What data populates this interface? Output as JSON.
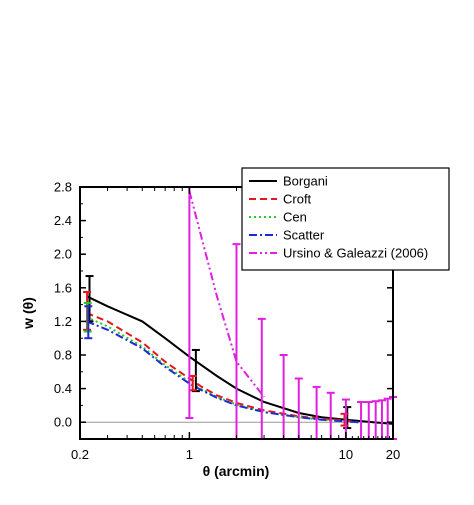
{
  "chart_data": {
    "type": "line",
    "xlabel": "θ (arcmin)",
    "ylabel": "w (θ)",
    "xscale": "log",
    "xlim": [
      0.2,
      20
    ],
    "ylim": [
      -0.2,
      2.8
    ],
    "x_ticks": [
      0.2,
      1,
      10,
      20
    ],
    "x_tick_labels": [
      "0.2",
      "1",
      "10",
      "20"
    ],
    "y_ticks": [
      0.0,
      0.4,
      0.8,
      1.2,
      1.6,
      2.0,
      2.4,
      2.8
    ],
    "y_tick_labels": [
      "0.0",
      "0.4",
      "0.8",
      "1.2",
      "1.6",
      "2.0",
      "2.4",
      "2.8"
    ],
    "legend_position": "top-right",
    "zero_line": true,
    "series": [
      {
        "name": "Borgani",
        "color": "#000000",
        "style": "solid",
        "x": [
          0.22,
          0.3,
          0.5,
          0.7,
          1.0,
          1.5,
          2.0,
          3.0,
          5.0,
          7.0,
          10.0,
          15.0,
          20.0
        ],
        "y": [
          1.5,
          1.38,
          1.2,
          1.0,
          0.78,
          0.55,
          0.4,
          0.24,
          0.11,
          0.06,
          0.03,
          0.0,
          -0.02
        ],
        "error_bars": [
          {
            "x": 0.23,
            "y": 1.47,
            "lo": 1.2,
            "hi": 1.74
          },
          {
            "x": 1.1,
            "y": 0.55,
            "lo": 0.37,
            "hi": 0.86
          },
          {
            "x": 10.2,
            "y": 0.04,
            "lo": -0.07,
            "hi": 0.18
          }
        ]
      },
      {
        "name": "Croft",
        "color": "#e8151c",
        "style": "dashed",
        "x": [
          0.22,
          0.3,
          0.5,
          0.7,
          1.0,
          1.2,
          1.5,
          2.0,
          3.0,
          5.0,
          7.0,
          10.0,
          12.0
        ],
        "y": [
          1.3,
          1.2,
          0.95,
          0.72,
          0.52,
          0.42,
          0.32,
          0.23,
          0.14,
          0.07,
          0.04,
          0.02,
          0.0
        ],
        "error_bars": [
          {
            "x": 0.222,
            "y": 1.35,
            "lo": 1.1,
            "hi": 1.55
          },
          {
            "x": 1.05,
            "y": 0.45,
            "lo": 0.38,
            "hi": 0.55
          },
          {
            "x": 9.8,
            "y": 0.02,
            "lo": -0.04,
            "hi": 0.1
          }
        ]
      },
      {
        "name": "Cen",
        "color": "#22cc22",
        "style": "dotted",
        "x": [
          0.22,
          0.3,
          0.5,
          0.7,
          1.0,
          1.2,
          1.5,
          2.0,
          3.0,
          5.0,
          7.0,
          10.0,
          12.0
        ],
        "y": [
          1.25,
          1.14,
          0.9,
          0.68,
          0.48,
          0.39,
          0.3,
          0.21,
          0.12,
          0.06,
          0.03,
          0.01,
          0.0
        ],
        "error_bars": [
          {
            "x": 0.224,
            "y": 1.25,
            "lo": 1.08,
            "hi": 1.42
          }
        ]
      },
      {
        "name": "Scatter",
        "color": "#1c2bd6",
        "style": "dashdot",
        "x": [
          0.22,
          0.3,
          0.5,
          0.7,
          1.0,
          1.2,
          1.5,
          2.0,
          3.0,
          5.0,
          7.0,
          10.0,
          12.0
        ],
        "y": [
          1.2,
          1.1,
          0.88,
          0.66,
          0.46,
          0.38,
          0.29,
          0.2,
          0.12,
          0.06,
          0.03,
          0.01,
          0.0
        ],
        "error_bars": [
          {
            "x": 0.226,
            "y": 1.2,
            "lo": 1.0,
            "hi": 1.38
          }
        ]
      },
      {
        "name": "Ursino & Galeazzi (2006)",
        "color": "#e020e0",
        "style": "dashdotdot",
        "x": [
          1.0,
          1.5,
          2.0,
          3.0
        ],
        "y": [
          2.75,
          1.5,
          0.72,
          0.3
        ],
        "error_bars": [
          {
            "x": 1.0,
            "y": 2.8,
            "lo": 0.05,
            "hi": 2.8
          },
          {
            "x": 2.0,
            "y": 0.72,
            "lo": -0.2,
            "hi": 2.12
          },
          {
            "x": 2.9,
            "y": 0.3,
            "lo": -0.2,
            "hi": 1.23
          },
          {
            "x": 4.0,
            "y": 0.1,
            "lo": -0.2,
            "hi": 0.8
          },
          {
            "x": 5.0,
            "y": 0.05,
            "lo": -0.2,
            "hi": 0.52
          },
          {
            "x": 6.5,
            "y": 0.03,
            "lo": -0.2,
            "hi": 0.42
          },
          {
            "x": 8.0,
            "y": 0.02,
            "lo": -0.2,
            "hi": 0.35
          },
          {
            "x": 10.0,
            "y": 0.02,
            "lo": -0.2,
            "hi": 0.27
          },
          {
            "x": 12.5,
            "y": 0.02,
            "lo": -0.2,
            "hi": 0.24
          },
          {
            "x": 14.0,
            "y": 0.02,
            "lo": -0.2,
            "hi": 0.24
          },
          {
            "x": 15.5,
            "y": 0.02,
            "lo": -0.2,
            "hi": 0.25
          },
          {
            "x": 17.0,
            "y": 0.02,
            "lo": -0.2,
            "hi": 0.26
          },
          {
            "x": 18.5,
            "y": 0.02,
            "lo": -0.2,
            "hi": 0.28
          },
          {
            "x": 20.0,
            "y": 0.02,
            "lo": -0.2,
            "hi": 0.3
          }
        ]
      }
    ]
  }
}
